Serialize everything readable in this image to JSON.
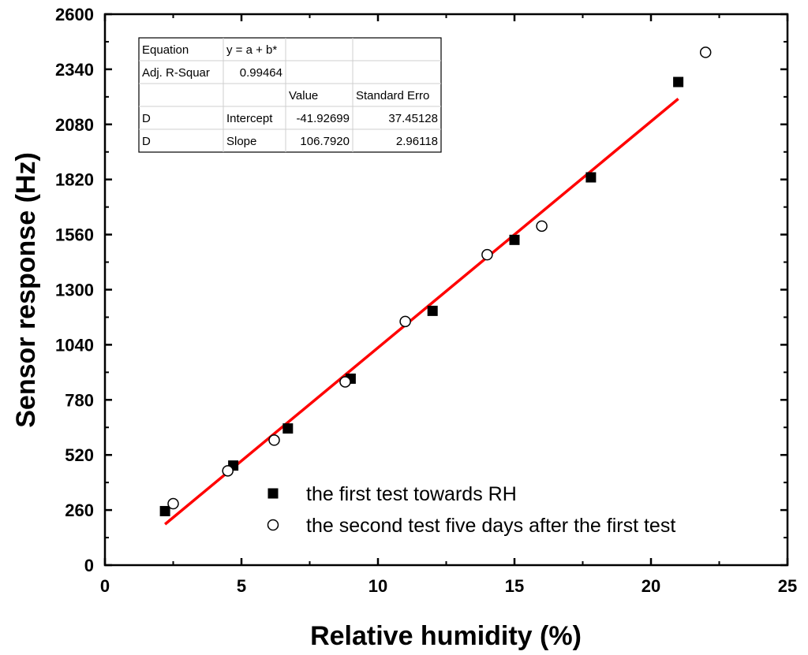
{
  "chart_data": {
    "type": "scatter",
    "xlabel": "Relative humidity (%)",
    "ylabel": "Sensor response (Hz)",
    "xlim": [
      0,
      25
    ],
    "ylim": [
      0,
      2600
    ],
    "x_ticks": [
      0,
      5,
      10,
      15,
      20,
      25
    ],
    "y_ticks": [
      0,
      260,
      520,
      780,
      1040,
      1300,
      1560,
      1820,
      2080,
      2340,
      2600
    ],
    "series": [
      {
        "name": "the first test towards RH",
        "marker": "filled-square",
        "color": "#000000",
        "points": [
          {
            "x": 2.2,
            "y": 255
          },
          {
            "x": 4.7,
            "y": 470
          },
          {
            "x": 6.7,
            "y": 645
          },
          {
            "x": 9.0,
            "y": 880
          },
          {
            "x": 12.0,
            "y": 1200
          },
          {
            "x": 15.0,
            "y": 1535
          },
          {
            "x": 17.8,
            "y": 1830
          },
          {
            "x": 21.0,
            "y": 2280
          }
        ]
      },
      {
        "name": "the second test five days after the first test",
        "marker": "open-circle",
        "color": "#000000",
        "points": [
          {
            "x": 2.5,
            "y": 290
          },
          {
            "x": 4.5,
            "y": 445
          },
          {
            "x": 6.2,
            "y": 590
          },
          {
            "x": 8.8,
            "y": 865
          },
          {
            "x": 11.0,
            "y": 1150
          },
          {
            "x": 14.0,
            "y": 1465
          },
          {
            "x": 16.0,
            "y": 1600
          },
          {
            "x": 22.0,
            "y": 2420
          }
        ]
      }
    ],
    "fit_line": {
      "intercept": -41.92699,
      "slope": 106.792,
      "x_range": [
        2.2,
        21.0
      ],
      "color": "#ff0000"
    },
    "legend_position": "bottom-right",
    "fit_table": {
      "rows": [
        [
          "Equation",
          "y = a + b*",
          "",
          ""
        ],
        [
          "Adj. R-Squar",
          "0.99464",
          "",
          ""
        ],
        [
          "",
          "",
          "Value",
          "Standard Erro"
        ],
        [
          "D",
          "Intercept",
          "-41.92699",
          "37.45128"
        ],
        [
          "D",
          "Slope",
          "106.7920",
          "2.96118"
        ]
      ]
    }
  }
}
